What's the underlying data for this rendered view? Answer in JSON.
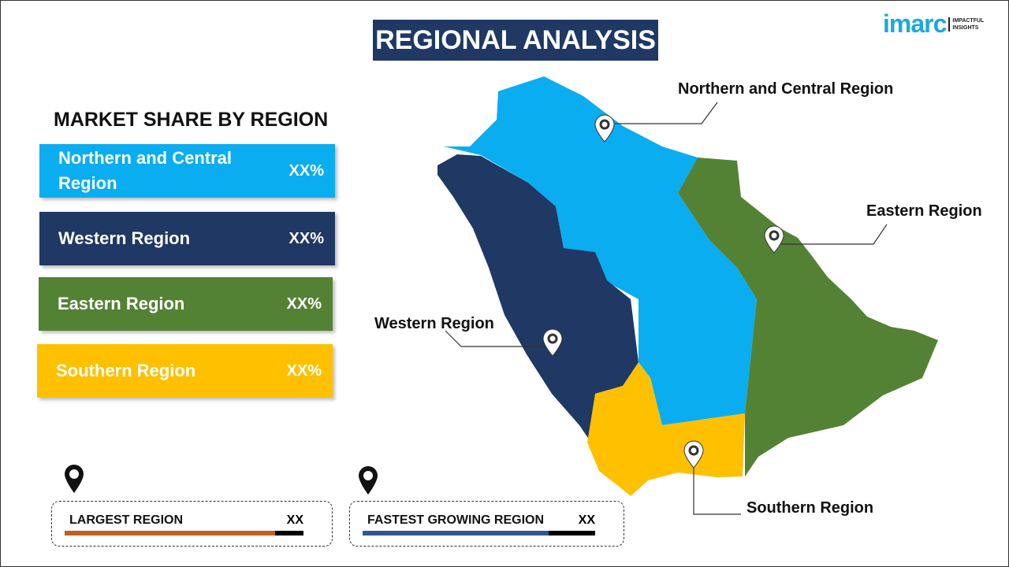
{
  "title": "REGIONAL ANALYSIS",
  "logo": {
    "word": "imarc",
    "tagline_1": "IMPACTFUL",
    "tagline_2": "INSIGHTS"
  },
  "market_share": {
    "title": "MARKET SHARE BY REGION",
    "items": [
      {
        "label": "Northern and Central Region",
        "value": "XX%",
        "color": "#0AADEF"
      },
      {
        "label": "Western Region",
        "value": "XX%",
        "color": "#1F3864"
      },
      {
        "label": "Eastern Region",
        "value": "XX%",
        "color": "#548235"
      },
      {
        "label": "Southern Region",
        "value": "XX%",
        "color": "#FFC000"
      }
    ]
  },
  "largest": {
    "label": "LARGEST REGION",
    "value": "XX",
    "color": "#C0601F"
  },
  "fastest": {
    "label": "FASTEST  GROWING REGION",
    "value": "XX",
    "color": "#2F5597"
  },
  "map_labels": {
    "north": "Northern and Central Region",
    "east": "Eastern Region",
    "west": "Western Region",
    "south": "Southern Region"
  }
}
